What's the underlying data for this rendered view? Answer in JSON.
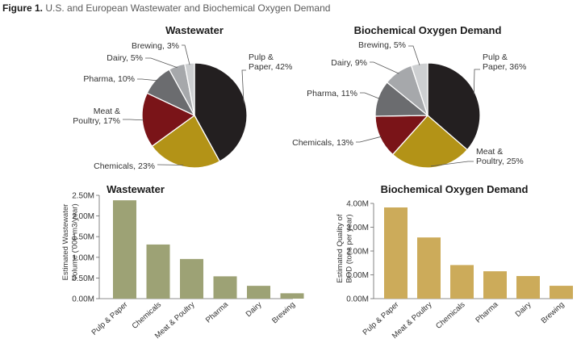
{
  "figure": {
    "number": "Figure 1.",
    "caption": "U.S. and European Wastewater and Biochemical Oxygen Demand"
  },
  "chart_data": [
    {
      "type": "pie",
      "title": "Wastewater",
      "slices": [
        {
          "lines": [
            "Pulp &",
            "Paper, 42%"
          ],
          "value": 42,
          "color": "#231f20"
        },
        {
          "lines": [
            "Chemicals, 23%"
          ],
          "value": 23,
          "color": "#b39317"
        },
        {
          "lines": [
            "Meat &",
            "Poultry, 17%"
          ],
          "value": 17,
          "color": "#7a1418"
        },
        {
          "lines": [
            "Pharma, 10%"
          ],
          "value": 10,
          "color": "#6b6c6f"
        },
        {
          "lines": [
            "Dairy, 5%"
          ],
          "value": 5,
          "color": "#a6a8ab"
        },
        {
          "lines": [
            "Brewing, 3%"
          ],
          "value": 3,
          "color": "#cdcfd1"
        }
      ]
    },
    {
      "type": "pie",
      "title": "Biochemical Oxygen Demand",
      "slices": [
        {
          "lines": [
            "Pulp &",
            "Paper, 36%"
          ],
          "value": 36,
          "color": "#231f20"
        },
        {
          "lines": [
            "Meat &",
            "Poultry, 25%"
          ],
          "value": 25,
          "color": "#b39317"
        },
        {
          "lines": [
            "Chemicals, 13%"
          ],
          "value": 13,
          "color": "#7a1418"
        },
        {
          "lines": [
            "Pharma, 11%"
          ],
          "value": 11,
          "color": "#6b6c6f"
        },
        {
          "lines": [
            "Dairy, 9%"
          ],
          "value": 9,
          "color": "#a6a8ab"
        },
        {
          "lines": [
            "Brewing, 5%"
          ],
          "value": 5,
          "color": "#cdcfd1"
        }
      ]
    },
    {
      "type": "bar",
      "title": "Wastewater",
      "ylabel_lines": [
        "Estimated Wastewater",
        "Volume ('000 m3/year)"
      ],
      "categories": [
        "Pulp & Paper",
        "Chemicals",
        "Meat & Poultry",
        "Pharma",
        "Dairy",
        "Brewing"
      ],
      "values": [
        2380000,
        1310000,
        960000,
        540000,
        310000,
        130000
      ],
      "ylim": [
        0,
        2500000
      ],
      "yticks": [
        0,
        500000,
        1000000,
        1500000,
        2000000,
        2500000
      ],
      "ytick_labels": [
        "0.00M",
        "0.50M",
        "1.00M",
        "1.50M",
        "2.00M",
        "2.50M"
      ],
      "bar_color": "#9da275",
      "grid": false
    },
    {
      "type": "bar",
      "title": "Biochemical Oxygen Demand",
      "ylabel_lines": [
        "Estimated Quality of",
        "BOD (tons per year)"
      ],
      "categories": [
        "Pulp & Paper",
        "Meat & Poultry",
        "Chemicals",
        "Pharma",
        "Dairy",
        "Brewing"
      ],
      "values": [
        3830000,
        2570000,
        1410000,
        1150000,
        950000,
        540000
      ],
      "ylim": [
        0,
        4000000
      ],
      "yticks": [
        0,
        1000000,
        2000000,
        3000000,
        4000000
      ],
      "ytick_labels": [
        "0.00M",
        "1.00M",
        "2.00M",
        "3.00M",
        "4.00M"
      ],
      "bar_color": "#ccab5a",
      "grid": false
    }
  ]
}
